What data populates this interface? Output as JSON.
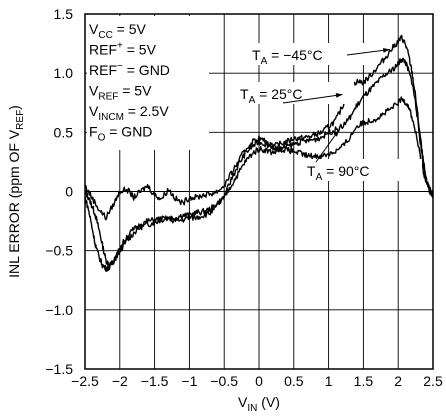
{
  "chart_data": {
    "type": "line",
    "xlabel_main": "V",
    "xlabel_sub": "IN",
    "xlabel_unit": " (V)",
    "ylabel_main": "INL ERROR (ppm OF V",
    "ylabel_sub": "REF",
    "ylabel_end": ")",
    "xlim": [
      -2.5,
      2.5
    ],
    "ylim": [
      -1.5,
      1.5
    ],
    "xticks": [
      "-2.5",
      "-2",
      "-1.5",
      "-1",
      "-0.5",
      "0",
      "0.5",
      "1",
      "1.5",
      "2",
      "2.5"
    ],
    "yticks": [
      "1.5",
      "1.0",
      "0.5",
      "0",
      "-0.5",
      "-1.0",
      "-1.5"
    ],
    "grid": true,
    "conditions": [
      {
        "main": "V",
        "sub": "CC",
        "rest": " = 5V"
      },
      {
        "main": "REF",
        "sup": "+",
        "rest": " = 5V"
      },
      {
        "main": "REF",
        "sup": "−",
        "rest": " = GND"
      },
      {
        "main": "V",
        "sub": "REF",
        "rest": " = 5V"
      },
      {
        "main": "V",
        "sub": "INCM",
        "rest": " = 2.5V"
      },
      {
        "main": "F",
        "sub": "O",
        "rest": " = GND"
      }
    ],
    "series": [
      {
        "name": "T_A = −45°C",
        "label_main": "T",
        "label_sub": "A",
        "label_rest": " = −45°C",
        "x": [
          -2.5,
          -2.45,
          -2.4,
          -2.35,
          -2.3,
          -2.25,
          -2.2,
          -2.15,
          -2.1,
          -2.05,
          -2.0,
          -1.9,
          -1.8,
          -1.7,
          -1.6,
          -1.5,
          -1.4,
          -1.3,
          -1.2,
          -1.1,
          -1.0,
          -0.9,
          -0.8,
          -0.7,
          -0.6,
          -0.5,
          -0.4,
          -0.3,
          -0.2,
          -0.1,
          0.0,
          0.1,
          0.2,
          0.3,
          0.4,
          0.5,
          0.6,
          0.7,
          0.8,
          0.9,
          1.0,
          1.1,
          1.2,
          1.3,
          1.4,
          1.5,
          1.6,
          1.7,
          1.8,
          1.9,
          2.0,
          2.05,
          2.1,
          2.15,
          2.2,
          2.25,
          2.3,
          2.35,
          2.4,
          2.45,
          2.5
        ],
        "y": [
          0.0,
          -0.05,
          -0.12,
          -0.2,
          -0.32,
          -0.45,
          -0.58,
          -0.62,
          -0.6,
          -0.55,
          -0.5,
          -0.42,
          -0.35,
          -0.3,
          -0.28,
          -0.26,
          -0.24,
          -0.22,
          -0.22,
          -0.2,
          -0.2,
          -0.18,
          -0.17,
          -0.15,
          -0.1,
          -0.05,
          0.1,
          0.22,
          0.32,
          0.38,
          0.42,
          0.4,
          0.38,
          0.4,
          0.42,
          0.45,
          0.45,
          0.46,
          0.48,
          0.5,
          0.55,
          0.6,
          0.72,
          0.85,
          0.93,
          0.92,
          0.98,
          1.05,
          1.12,
          1.2,
          1.27,
          1.3,
          1.25,
          1.15,
          1.0,
          0.8,
          0.55,
          0.3,
          0.1,
          0.0,
          -0.05
        ]
      },
      {
        "name": "T_A = 25°C",
        "label_main": "T",
        "label_sub": "A",
        "label_rest": " = 25°C",
        "x": [
          -2.5,
          -2.45,
          -2.4,
          -2.35,
          -2.3,
          -2.25,
          -2.2,
          -2.15,
          -2.1,
          -2.05,
          -2.0,
          -1.9,
          -1.8,
          -1.7,
          -1.6,
          -1.5,
          -1.4,
          -1.3,
          -1.2,
          -1.1,
          -1.0,
          -0.9,
          -0.8,
          -0.7,
          -0.6,
          -0.5,
          -0.4,
          -0.3,
          -0.2,
          -0.1,
          0.0,
          0.1,
          0.2,
          0.3,
          0.4,
          0.5,
          0.6,
          0.7,
          0.8,
          0.9,
          1.0,
          1.1,
          1.2,
          1.3,
          1.4,
          1.5,
          1.6,
          1.7,
          1.8,
          1.9,
          2.0,
          2.05,
          2.1,
          2.15,
          2.2,
          2.25,
          2.3,
          2.35,
          2.4,
          2.45,
          2.5
        ],
        "y": [
          -0.05,
          -0.15,
          -0.3,
          -0.45,
          -0.55,
          -0.62,
          -0.65,
          -0.64,
          -0.6,
          -0.55,
          -0.48,
          -0.38,
          -0.32,
          -0.28,
          -0.25,
          -0.24,
          -0.23,
          -0.23,
          -0.25,
          -0.24,
          -0.22,
          -0.22,
          -0.2,
          -0.18,
          -0.12,
          -0.05,
          0.05,
          0.15,
          0.25,
          0.32,
          0.36,
          0.35,
          0.33,
          0.35,
          0.38,
          0.4,
          0.42,
          0.43,
          0.44,
          0.46,
          0.5,
          0.52,
          0.55,
          0.62,
          0.72,
          0.8,
          0.86,
          0.92,
          0.98,
          1.02,
          1.08,
          1.12,
          1.1,
          1.02,
          0.92,
          0.75,
          0.5,
          0.28,
          0.1,
          0.02,
          -0.05
        ]
      },
      {
        "name": "T_A = 90°C",
        "label_main": "T",
        "label_sub": "A",
        "label_rest": " = 90°C",
        "x": [
          -2.5,
          -2.4,
          -2.3,
          -2.2,
          -2.1,
          -2.0,
          -1.9,
          -1.8,
          -1.7,
          -1.6,
          -1.5,
          -1.4,
          -1.3,
          -1.2,
          -1.1,
          -1.0,
          -0.9,
          -0.8,
          -0.7,
          -0.6,
          -0.5,
          -0.4,
          -0.3,
          -0.2,
          -0.1,
          0.0,
          0.1,
          0.2,
          0.3,
          0.4,
          0.5,
          0.6,
          0.7,
          0.8,
          0.9,
          1.0,
          1.1,
          1.2,
          1.3,
          1.4,
          1.5,
          1.6,
          1.7,
          1.8,
          1.9,
          2.0,
          2.05,
          2.1,
          2.15,
          2.2,
          2.25,
          2.3,
          2.35,
          2.4,
          2.45,
          2.5
        ],
        "y": [
          0.05,
          -0.05,
          -0.15,
          -0.22,
          -0.12,
          0.0,
          0.02,
          -0.05,
          0.0,
          0.05,
          -0.03,
          -0.06,
          0.02,
          -0.06,
          -0.1,
          -0.05,
          -0.05,
          -0.03,
          -0.02,
          0.0,
          0.05,
          0.15,
          0.25,
          0.35,
          0.42,
          0.45,
          0.42,
          0.38,
          0.36,
          0.35,
          0.34,
          0.32,
          0.3,
          0.3,
          0.3,
          0.32,
          0.34,
          0.38,
          0.45,
          0.55,
          0.58,
          0.6,
          0.62,
          0.66,
          0.7,
          0.75,
          0.78,
          0.76,
          0.72,
          0.62,
          0.5,
          0.35,
          0.2,
          0.08,
          0.02,
          0.0
        ]
      }
    ]
  }
}
